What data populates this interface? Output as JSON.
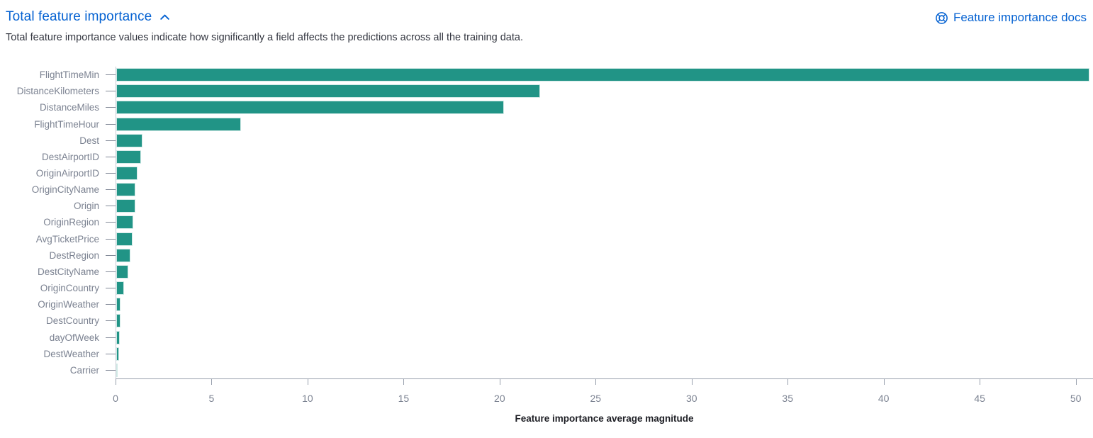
{
  "header": {
    "title": "Total feature importance",
    "collapse_icon": "chevron-up",
    "docs_link_label": "Feature importance docs",
    "docs_icon": "help-lifering"
  },
  "description": "Total feature importance values indicate how significantly a field affects the predictions across all the training data.",
  "colors": {
    "link_blue": "#0562d2",
    "bar_teal": "#219486",
    "axis_text": "#7b8291",
    "body_text": "#343741"
  },
  "chart_data": {
    "type": "bar",
    "orientation": "horizontal",
    "title": "",
    "xlabel": "Feature importance average magnitude",
    "ylabel": "",
    "categories": [
      "FlightTimeMin",
      "DistanceKilometers",
      "DistanceMiles",
      "FlightTimeHour",
      "Dest",
      "DestAirportID",
      "OriginAirportID",
      "OriginCityName",
      "Origin",
      "OriginRegion",
      "AvgTicketPrice",
      "DestRegion",
      "DestCityName",
      "OriginCountry",
      "OriginWeather",
      "DestCountry",
      "dayOfWeek",
      "DestWeather",
      "Carrier"
    ],
    "values": [
      50.7,
      22.1,
      20.2,
      6.5,
      1.35,
      1.3,
      1.1,
      1.0,
      0.98,
      0.9,
      0.85,
      0.75,
      0.63,
      0.41,
      0.21,
      0.21,
      0.17,
      0.16,
      0.04
    ],
    "x_ticks": [
      0,
      5,
      10,
      15,
      20,
      25,
      30,
      35,
      40,
      45,
      50
    ],
    "xlim": [
      0,
      50.9
    ],
    "grid": false,
    "legend": "none",
    "bar_color": "#219486"
  }
}
